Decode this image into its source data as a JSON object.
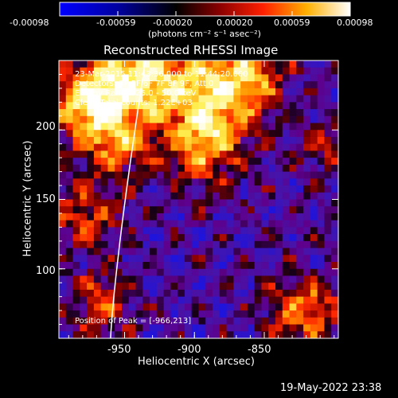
{
  "chart_data": {
    "type": "heatmap",
    "title": "Reconstructed RHESSI Image",
    "xlabel": "Heliocentric X (arcsec)",
    "ylabel": "Heliocentric Y (arcsec)",
    "xlim": [
      -997,
      -797
    ],
    "ylim": [
      50,
      250
    ],
    "x_ticks": [
      -950,
      -900,
      -850
    ],
    "y_ticks": [
      100,
      150,
      200
    ],
    "colorbar": {
      "label": "(photons cm⁻² s⁻¹ asec⁻²)",
      "range": [
        -0.00098,
        0.00098
      ],
      "tick_labels": [
        "-0.00098",
        "-0.00059",
        "-0.00020",
        "0.00020",
        "0.00059",
        "0.00098"
      ],
      "colormap": [
        "#0000ff",
        "#000000",
        "#7a00a8",
        "#ff0000",
        "#ff9000",
        "#ffff00",
        "#ffffff"
      ]
    },
    "annotations": {
      "time": "23-Mar-2015 11:43:36.000 to 11:44:20.000",
      "detectors": "Detectors: 3F 5F 6F 7F 8F 9F, Att 0",
      "energy": "Energy Range: 25.0 - 50.0 keV",
      "clean": "Clean    Total counts: 1.22E+03",
      "peak": "Position of Peak = [-966,213]"
    },
    "peak": [
      -966,
      213
    ],
    "limb_color": "#ffffff"
  },
  "footer": {
    "timestamp": "19-May-2022 23:38"
  }
}
